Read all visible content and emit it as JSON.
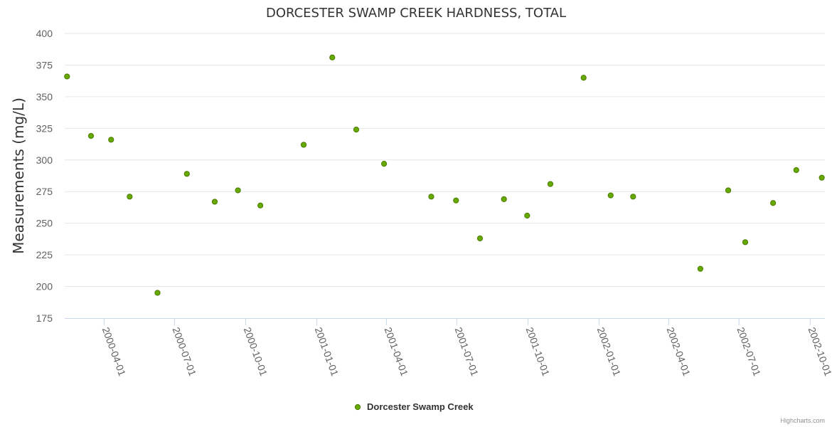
{
  "colors": {
    "point_fill": "#66AA00",
    "point_stroke": "#4A7A00",
    "grid": "#e6e6e6",
    "axis": "#ccd6eb"
  },
  "credits": "Highcharts.com",
  "chart_data": {
    "type": "scatter",
    "title": "DORCESTER SWAMP CREEK HARDNESS, TOTAL",
    "ylabel": "Measurements (mg/L)",
    "xlabel": "",
    "ylim": [
      175,
      400
    ],
    "yticks": [
      175,
      200,
      225,
      250,
      275,
      300,
      325,
      350,
      375,
      400
    ],
    "xlim": [
      "2000-02-10",
      "2002-10-20"
    ],
    "xticks": [
      "2000-04-01",
      "2000-07-01",
      "2000-10-01",
      "2001-01-01",
      "2001-04-01",
      "2001-07-01",
      "2001-10-01",
      "2002-01-01",
      "2002-04-01",
      "2002-07-01",
      "2002-10-01"
    ],
    "grid": true,
    "legend_position": "bottom-center",
    "series": [
      {
        "name": "Dorcester Swamp Creek",
        "points": [
          {
            "x": "2000-02-13",
            "y": 366
          },
          {
            "x": "2000-03-15",
            "y": 319
          },
          {
            "x": "2000-04-10",
            "y": 316
          },
          {
            "x": "2000-05-04",
            "y": 271
          },
          {
            "x": "2000-06-09",
            "y": 195
          },
          {
            "x": "2000-07-17",
            "y": 289
          },
          {
            "x": "2000-08-22",
            "y": 267
          },
          {
            "x": "2000-09-21",
            "y": 276
          },
          {
            "x": "2000-10-20",
            "y": 264
          },
          {
            "x": "2000-12-15",
            "y": 312
          },
          {
            "x": "2001-01-21",
            "y": 381
          },
          {
            "x": "2001-02-21",
            "y": 324
          },
          {
            "x": "2001-03-29",
            "y": 297
          },
          {
            "x": "2001-05-29",
            "y": 271
          },
          {
            "x": "2001-06-30",
            "y": 268
          },
          {
            "x": "2001-07-31",
            "y": 238
          },
          {
            "x": "2001-08-31",
            "y": 269
          },
          {
            "x": "2001-09-30",
            "y": 256
          },
          {
            "x": "2001-10-30",
            "y": 281
          },
          {
            "x": "2001-12-12",
            "y": 365
          },
          {
            "x": "2002-01-16",
            "y": 272
          },
          {
            "x": "2002-02-14",
            "y": 271
          },
          {
            "x": "2002-05-12",
            "y": 214
          },
          {
            "x": "2002-06-17",
            "y": 276
          },
          {
            "x": "2002-07-09",
            "y": 235
          },
          {
            "x": "2002-08-14",
            "y": 266
          },
          {
            "x": "2002-09-13",
            "y": 292
          },
          {
            "x": "2002-10-16",
            "y": 286
          }
        ]
      }
    ]
  }
}
